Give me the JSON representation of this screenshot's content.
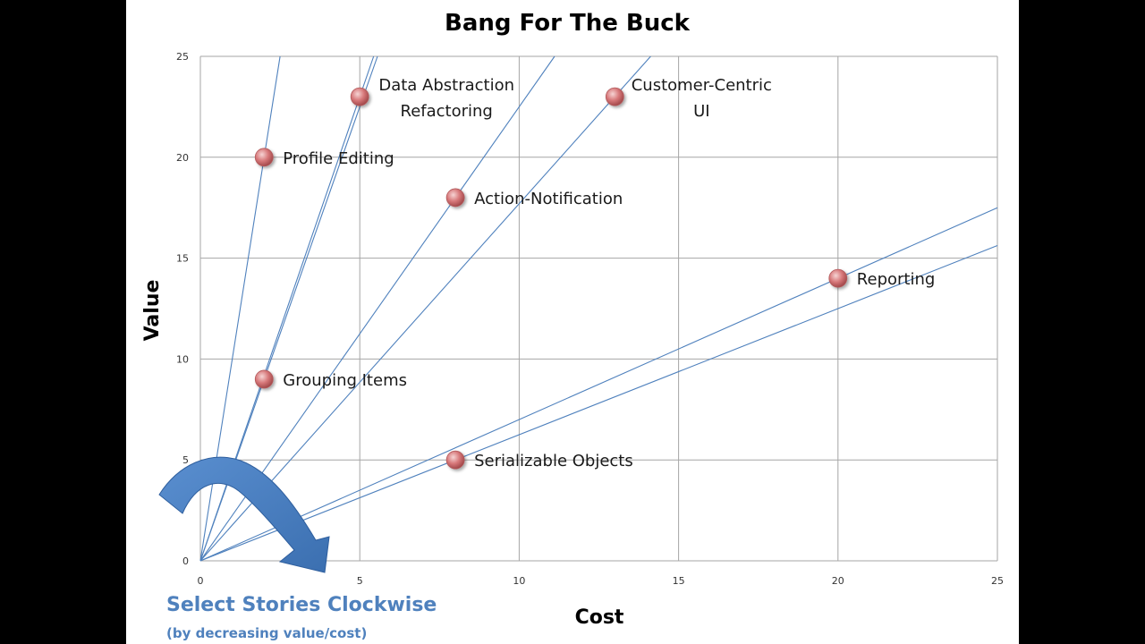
{
  "chart_data": {
    "type": "scatter",
    "title": "Bang For The Buck",
    "xlabel": "Cost",
    "ylabel": "Value",
    "xlim": [
      0,
      25
    ],
    "ylim": [
      0,
      25
    ],
    "x_ticks": [
      0,
      5,
      10,
      15,
      20,
      25
    ],
    "y_ticks": [
      0,
      5,
      10,
      15,
      20,
      25
    ],
    "grid": true,
    "points": [
      {
        "label": "Data Abstraction Refactoring",
        "label_lines": [
          "Data Abstraction",
          "Refactoring"
        ],
        "x": 5,
        "y": 23
      },
      {
        "label": "Customer-Centric UI",
        "label_lines": [
          "Customer-Centric",
          "UI"
        ],
        "x": 13,
        "y": 23
      },
      {
        "label": "Profile Editing",
        "label_lines": [
          "Profile Editing"
        ],
        "x": 2,
        "y": 20
      },
      {
        "label": "Action-Notification",
        "label_lines": [
          "Action-Notification"
        ],
        "x": 8,
        "y": 18
      },
      {
        "label": "Reporting",
        "label_lines": [
          "Reporting"
        ],
        "x": 20,
        "y": 14
      },
      {
        "label": "Grouping Items",
        "label_lines": [
          "Grouping Items"
        ],
        "x": 2,
        "y": 9
      },
      {
        "label": "Serializable Objects",
        "label_lines": [
          "Serializable Objects"
        ],
        "x": 8,
        "y": 5
      }
    ],
    "ratio_lines": [
      {
        "through": "Profile Editing",
        "slope": 10
      },
      {
        "through": "Grouping Items",
        "slope": 4.5
      },
      {
        "through": "Data Abstraction Refactoring",
        "slope": 4.6
      },
      {
        "through": "Action-Notification",
        "slope": 2.25
      },
      {
        "through": "Customer-Centric UI",
        "slope": 1.77
      },
      {
        "through": "Serializable Objects",
        "slope": 0.625
      },
      {
        "through": "Reporting",
        "slope": 0.7
      }
    ],
    "annotation": {
      "text": "Select Stories Clockwise",
      "subtext": "(by decreasing value/cost)"
    },
    "colors": {
      "grid": "#a6a6a6",
      "ratio_line": "#4f81bd",
      "marker": "#d7787a",
      "arrow": "#4a7ebb",
      "annotation_text": "#4f81bd"
    }
  }
}
